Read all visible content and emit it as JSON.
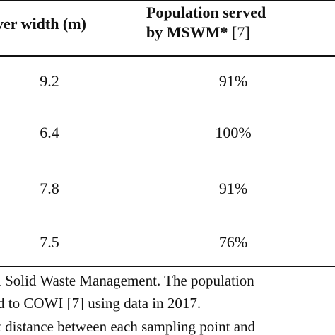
{
  "table": {
    "headers": {
      "river_width": "ver width (m)",
      "population_line1": "Population served",
      "population_line2_bold": "by MSWM*",
      "population_line2_ref": " [7]"
    },
    "rows": [
      {
        "river_width": "9.2",
        "population": "91%"
      },
      {
        "river_width": "6.4",
        "population": "100%"
      },
      {
        "river_width": "7.8",
        "population": "91%"
      },
      {
        "river_width": "7.5",
        "population": "76%"
      }
    ]
  },
  "footnote": {
    "lines": [
      "l Solid Waste Management. The population",
      "d to COWI [7] using data in 2017.",
      "t distance between each sampling point and"
    ]
  }
}
